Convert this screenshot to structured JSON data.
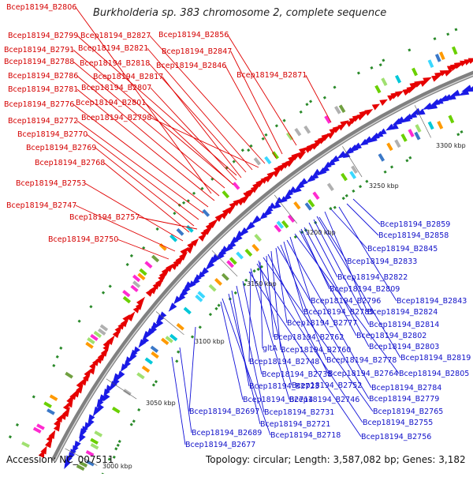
{
  "title": "Burkholderia sp. 383 chromosome 2, complete sequence",
  "footer": {
    "accession": "Accession: NC_007511",
    "summary": "Topology: circular; Length: 3,587,082 bp; Genes: 3,182"
  },
  "ticks": [
    "3000 kbp",
    "3050 kbp",
    "3100 kbp",
    "3150 kbp",
    "3200 kbp",
    "3250 kbp",
    "3300 kbp"
  ],
  "colors": {
    "forward": "#e60000",
    "reverse": "#1a1ae6",
    "backbone": "#808080"
  },
  "labels_forward": [
    "Bcep18194_B2806",
    "Bcep18194_B2799",
    "Bcep18194_B2827",
    "Bcep18194_B2856",
    "Bcep18194_B2791",
    "Bcep18194_B2821",
    "Bcep18194_B2847",
    "Bcep18194_B2788",
    "Bcep18194_B2818",
    "Bcep18194_B2846",
    "Bcep18194_B2786",
    "Bcep18194_B2817",
    "Bcep18194_B2871",
    "Bcep18194_B2781",
    "Bcep18194_B2807",
    "Bcep18194_B2776",
    "Bcep18194_B2801",
    "Bcep18194_B2798",
    "Bcep18194_B2772",
    "Bcep18194_B2770",
    "Bcep18194_B2769",
    "Bcep18194_B2768",
    "Bcep18194_B2753",
    "Bcep18194_B2747",
    "Bcep18194_B2757",
    "Bcep18194_B2750"
  ],
  "labels_reverse": [
    "Bcep18194_B2859",
    "Bcep18194_B2858",
    "Bcep18194_B2845",
    "Bcep18194_B2833",
    "Bcep18194_B2822",
    "Bcep18194_B2809",
    "Bcep18194_B2796",
    "Bcep18194_B2843",
    "Bcep18194_B2785",
    "Bcep18194_B2824",
    "Bcep18194_B2777",
    "Bcep18194_B2814",
    "Bcep18194_B2762",
    "Bcep18194_B2802",
    "gltA",
    "Bcep18194_B2760",
    "Bcep18194_B2803",
    "Bcep18194_B2748",
    "Bcep18194_B2778",
    "Bcep18194_B2819",
    "Bcep18194_B2738",
    "Bcep18194_B2764",
    "Bcep18194_B2805",
    "Bcep18194_B2723",
    "Bcep18194_B2752",
    "Bcep18194_B2784",
    "Bcep18194_B2714",
    "Bcep18194_B2746",
    "Bcep18194_B2779",
    "Bcep18194_B2697",
    "Bcep18194_B2731",
    "Bcep18194_B2765",
    "Bcep18194_B2721",
    "Bcep18194_B2755",
    "Bcep18194_B2689",
    "Bcep18194_B2718",
    "Bcep18194_B2756",
    "Bcep18194_B2677"
  ]
}
